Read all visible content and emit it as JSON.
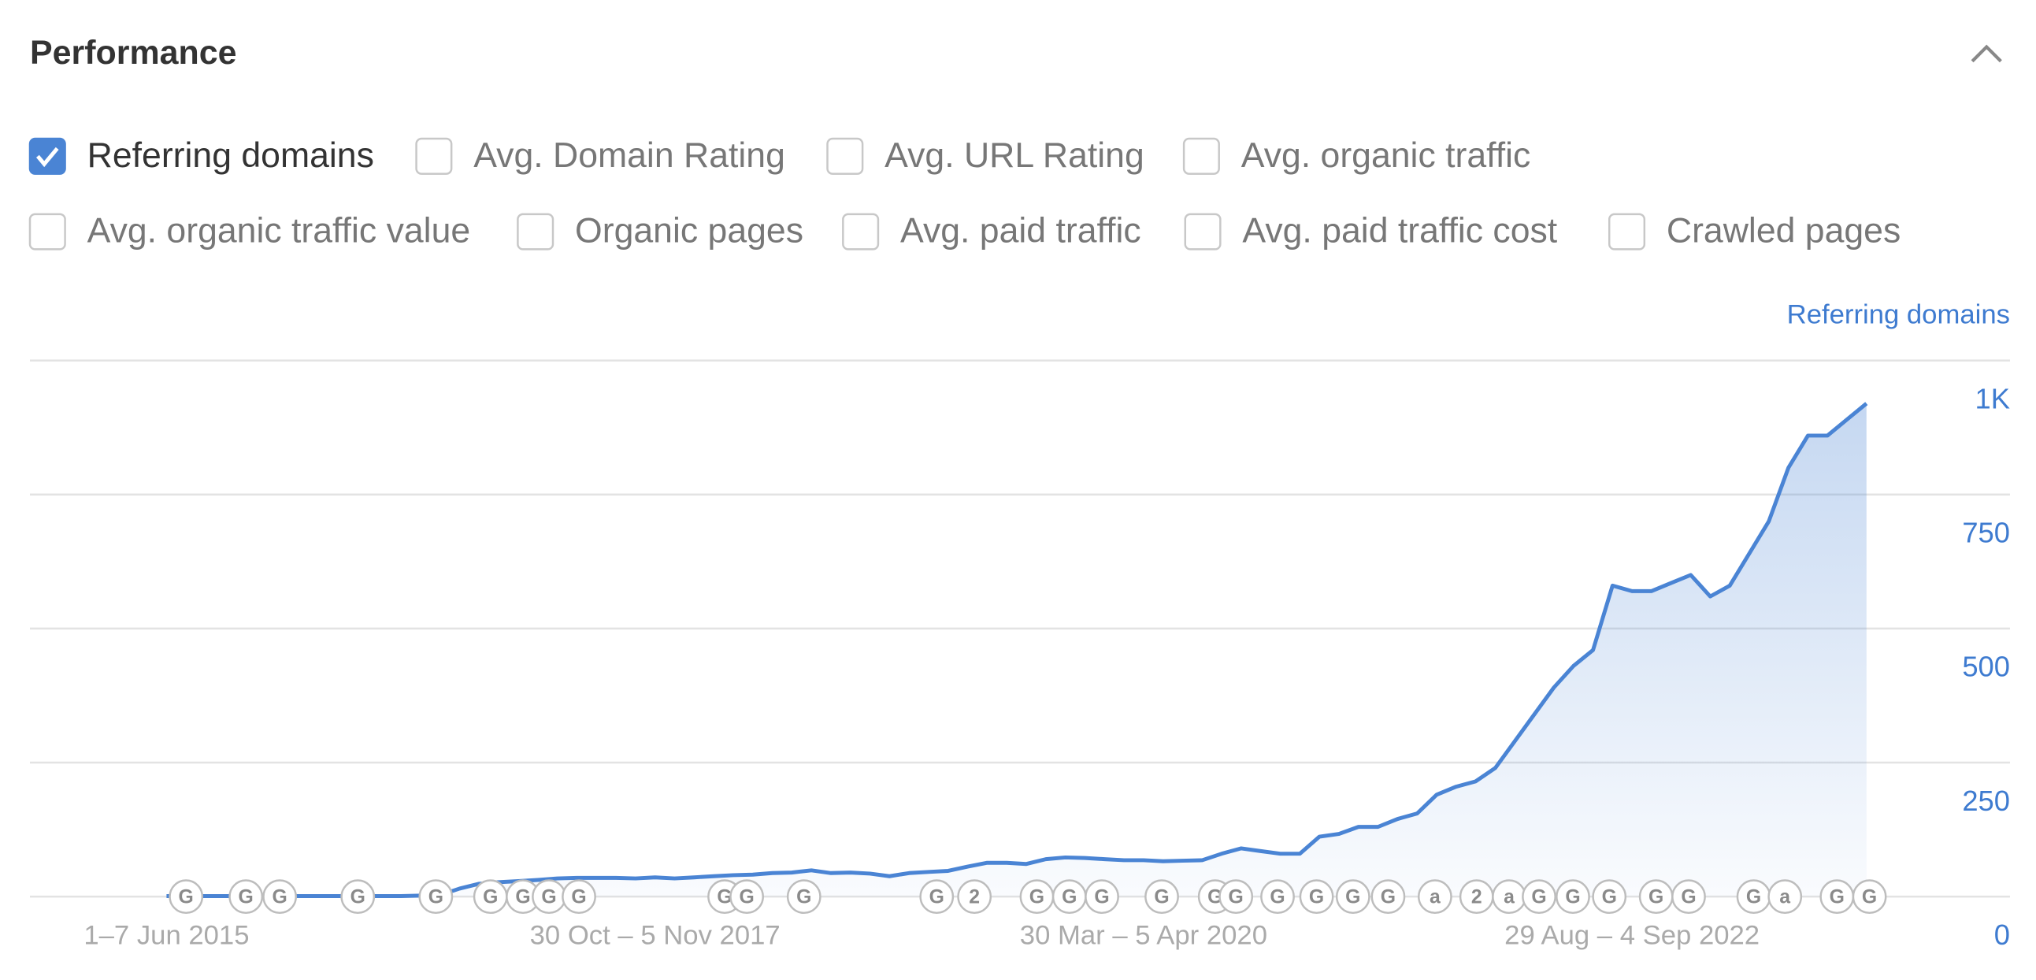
{
  "header": {
    "title": "Performance"
  },
  "checkboxes": [
    {
      "label": "Referring domains",
      "checked": true
    },
    {
      "label": "Avg. Domain Rating",
      "checked": false
    },
    {
      "label": "Avg. URL Rating",
      "checked": false
    },
    {
      "label": "Avg. organic traffic",
      "checked": false
    },
    {
      "label": "Avg. organic traffic value",
      "checked": false
    },
    {
      "label": "Organic pages",
      "checked": false
    },
    {
      "label": "Avg. paid traffic",
      "checked": false
    },
    {
      "label": "Avg. paid traffic cost",
      "checked": false
    },
    {
      "label": "Crawled pages",
      "checked": false
    }
  ],
  "chart_data": {
    "type": "area",
    "y_axis_label": "Referring domains",
    "color": "#4a84d4",
    "categories": [
      "1–7 Jun 2015",
      null,
      null,
      null,
      null,
      null,
      null,
      null,
      null,
      null,
      null,
      null,
      null,
      null,
      null,
      null,
      null,
      null,
      null,
      null,
      null,
      null,
      null,
      null,
      null,
      "30 Oct – 5 Nov 2017",
      null,
      null,
      null,
      null,
      null,
      null,
      null,
      null,
      null,
      null,
      null,
      null,
      null,
      null,
      null,
      null,
      null,
      null,
      null,
      null,
      null,
      null,
      null,
      null,
      "30 Mar – 5 Apr 2020",
      null,
      null,
      null,
      null,
      null,
      null,
      null,
      null,
      null,
      null,
      null,
      null,
      null,
      null,
      null,
      null,
      null,
      null,
      null,
      null,
      null,
      null,
      null,
      null,
      "29 Aug – 4 Sep 2022",
      null,
      null,
      null,
      null,
      null,
      null,
      null,
      null,
      null,
      null,
      null,
      null
    ],
    "values": [
      1,
      1,
      1,
      1,
      1,
      1,
      1,
      1,
      1,
      1,
      1,
      1,
      1,
      2,
      3,
      15,
      24,
      27,
      29,
      31,
      34,
      35,
      35,
      35,
      34,
      36,
      34,
      36,
      38,
      40,
      41,
      44,
      45,
      49,
      44,
      45,
      43,
      38,
      44,
      46,
      48,
      56,
      63,
      63,
      61,
      70,
      73,
      72,
      70,
      68,
      68,
      66,
      67,
      68,
      80,
      90,
      85,
      80,
      80,
      112,
      117,
      130,
      130,
      145,
      155,
      190,
      205,
      215,
      240,
      290,
      340,
      390,
      430,
      460,
      580,
      570,
      570,
      585,
      600,
      560,
      580,
      640,
      700,
      800,
      860,
      860,
      890,
      920
    ],
    "ylim": [
      0,
      1000
    ],
    "yticks": [
      0,
      250,
      500,
      750,
      {
        "value": 1000,
        "label": "1K"
      }
    ],
    "grid": true,
    "annotations": [
      "G",
      "G",
      "G",
      "G",
      "G",
      "G",
      "G",
      "G",
      "G",
      "G",
      "G",
      "G",
      "G",
      "2",
      "G",
      "G",
      "G",
      "G",
      "G",
      "G",
      "G",
      "G",
      "G",
      "G",
      "a",
      "2",
      "a",
      "G",
      "G",
      "G",
      "G",
      "G",
      "G",
      "a",
      "G",
      "G"
    ]
  }
}
